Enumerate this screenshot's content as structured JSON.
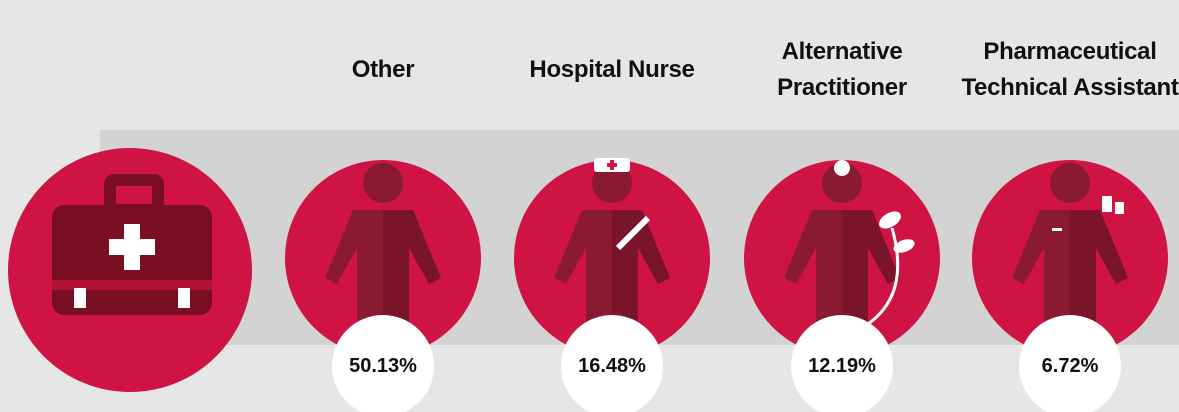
{
  "items": [
    {
      "label": "Other",
      "value": "50.13%"
    },
    {
      "label": "Hospital Nurse",
      "value": "16.48%"
    },
    {
      "label": "Alternative Practitioner",
      "value": "12.19%"
    },
    {
      "label": "Pharmaceutical Technical Assistant",
      "value": "6.72%"
    }
  ]
}
